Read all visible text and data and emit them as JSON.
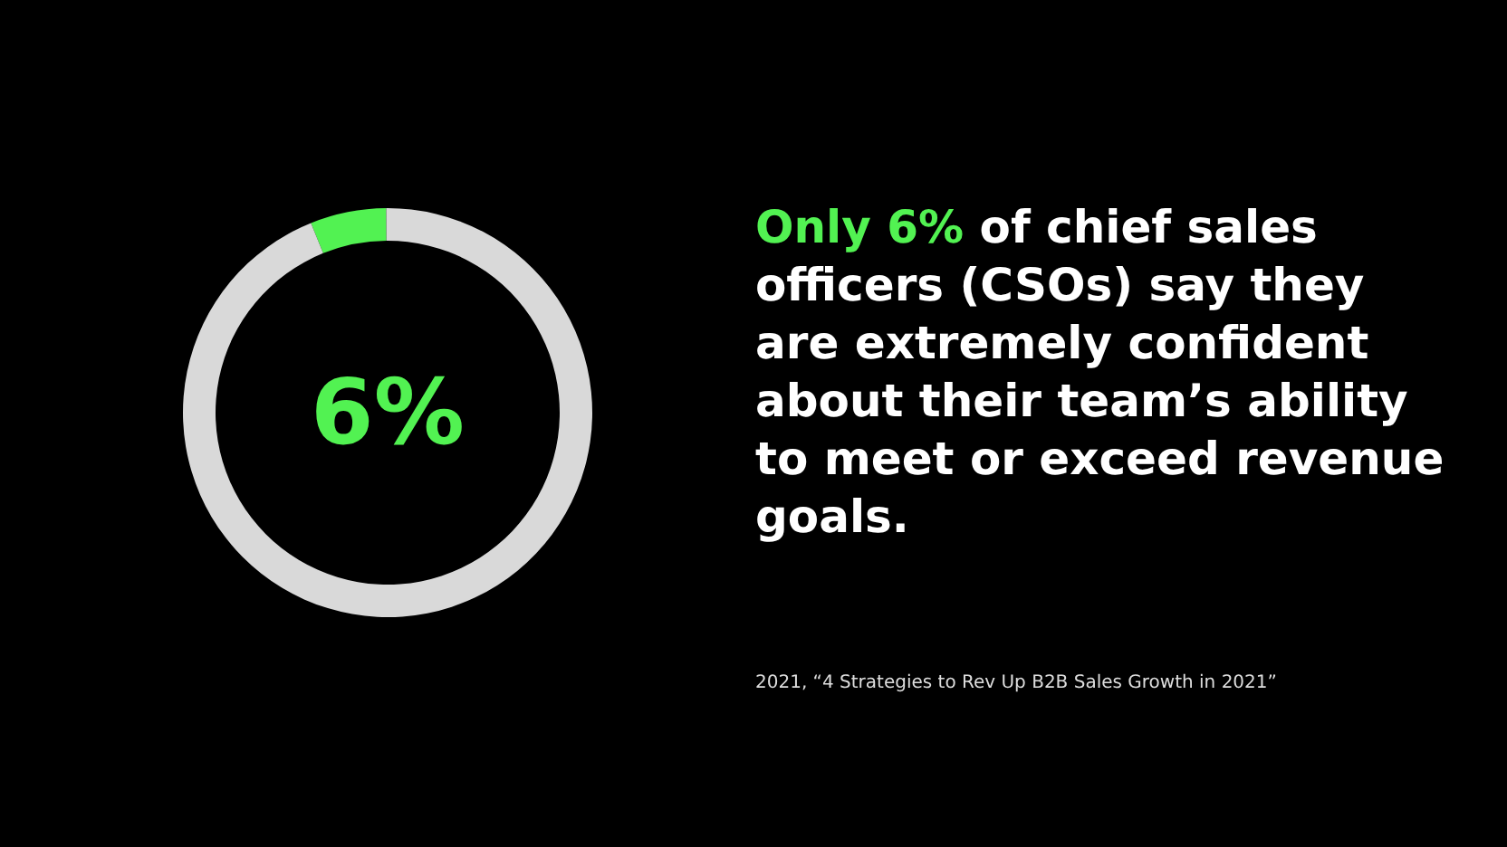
{
  "chart_data": {
    "type": "donut",
    "title": "Only 6% of chief sales officers (CSOs) say they are extremely confident about their team’s ability to meet or exceed revenue goals.",
    "categories": [
      null,
      null
    ],
    "values": [
      6,
      94
    ],
    "colors": [
      "#52f252",
      "#d9d9d9"
    ],
    "annotations": [
      "6%",
      "2021, “4 Strategies to Rev Up B2B Sales Growth in 2021”"
    ]
  }
}
